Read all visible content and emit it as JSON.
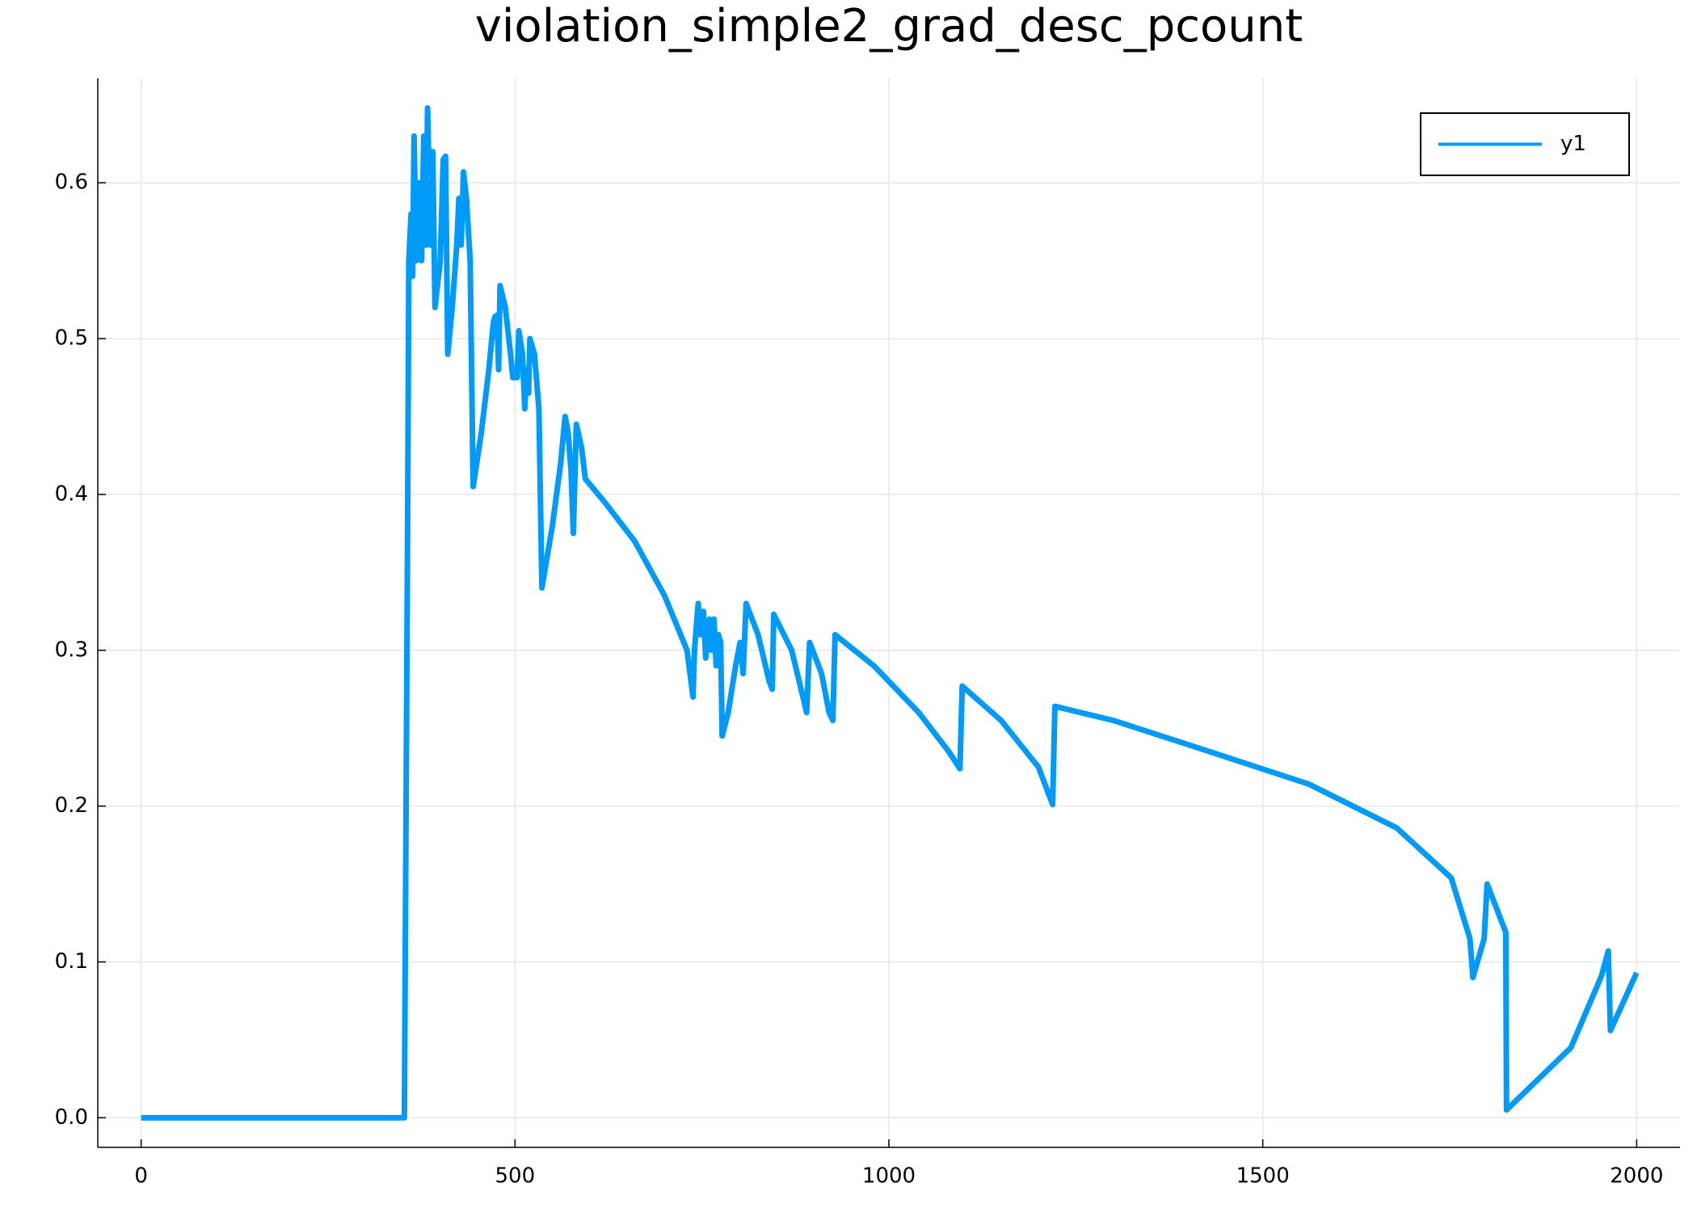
{
  "chart_data": {
    "type": "line",
    "title": "violation_simple2_grad_desc_pcount",
    "x": [
      0,
      352,
      356,
      358,
      361,
      363,
      365,
      368,
      372,
      375,
      378,
      381,
      383,
      387,
      390,
      393,
      400,
      404,
      407,
      410,
      416,
      422,
      425,
      428,
      431,
      435,
      440,
      444,
      455,
      465,
      471,
      473,
      476,
      478,
      480,
      487,
      494,
      497,
      503,
      505,
      510,
      513,
      515,
      518,
      520,
      526,
      532,
      536,
      550,
      561,
      567,
      571,
      575,
      578,
      582,
      589,
      594,
      620,
      660,
      700,
      730,
      738,
      740,
      745,
      748,
      752,
      755,
      760,
      763,
      766,
      769,
      772,
      775,
      777,
      785,
      795,
      801,
      805,
      809,
      825,
      840,
      844,
      846,
      870,
      885,
      890,
      894,
      910,
      920,
      925,
      928,
      980,
      1040,
      1080,
      1095,
      1098,
      1150,
      1200,
      1219,
      1222,
      1300,
      1416,
      1562,
      1679,
      1752,
      1777,
      1781,
      1796,
      1800,
      1825,
      1826,
      1912,
      1953,
      1962,
      1965,
      2000
    ],
    "series": [
      {
        "name": "y1",
        "color": "#009af9",
        "values": [
          0,
          0,
          0.35,
          0.55,
          0.58,
          0.54,
          0.63,
          0.55,
          0.6,
          0.55,
          0.63,
          0.56,
          0.648,
          0.56,
          0.62,
          0.52,
          0.55,
          0.615,
          0.617,
          0.49,
          0.52,
          0.56,
          0.59,
          0.56,
          0.607,
          0.59,
          0.55,
          0.405,
          0.44,
          0.48,
          0.51,
          0.514,
          0.515,
          0.48,
          0.534,
          0.52,
          0.49,
          0.475,
          0.475,
          0.505,
          0.49,
          0.455,
          0.48,
          0.465,
          0.5,
          0.49,
          0.455,
          0.34,
          0.38,
          0.42,
          0.45,
          0.44,
          0.415,
          0.375,
          0.445,
          0.43,
          0.41,
          0.395,
          0.37,
          0.335,
          0.3,
          0.27,
          0.3,
          0.33,
          0.31,
          0.325,
          0.295,
          0.32,
          0.3,
          0.32,
          0.29,
          0.31,
          0.305,
          0.245,
          0.26,
          0.29,
          0.305,
          0.285,
          0.33,
          0.31,
          0.28,
          0.275,
          0.323,
          0.3,
          0.27,
          0.26,
          0.305,
          0.285,
          0.26,
          0.255,
          0.31,
          0.29,
          0.26,
          0.235,
          0.224,
          0.277,
          0.255,
          0.225,
          0.201,
          0.264,
          0.255,
          0.237,
          0.214,
          0.186,
          0.154,
          0.115,
          0.09,
          0.115,
          0.15,
          0.119,
          0.005,
          0.045,
          0.091,
          0.107,
          0.056,
          0.093
        ]
      }
    ],
    "xlim": [
      -58,
      2058
    ],
    "xticks": [
      0,
      500,
      1000,
      1500,
      2000
    ],
    "ylim": [
      -0.019,
      0.667
    ],
    "yticks": [
      {
        "value": 0,
        "label": "0.0"
      },
      0.1,
      0.2,
      0.3,
      0.4,
      0.5,
      0.6
    ],
    "grid": true,
    "legend": "top-right"
  }
}
